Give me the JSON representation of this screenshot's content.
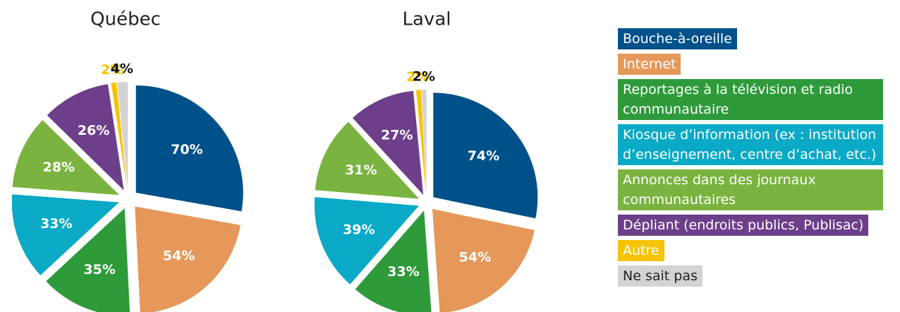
{
  "chart_data": [
    {
      "type": "pie",
      "title": "Québec",
      "categories": [
        "Bouche-à-oreille",
        "Internet",
        "Reportages à la télévision et radio communautaire",
        "Kiosque d’information (ex : institution d’enseignement, centre d’achat, etc.)",
        "Annonces dans des journaux communautaires",
        "Dépliant (endroits publics, Publisac)",
        "Autre",
        "Ne sait pas"
      ],
      "values": [
        70,
        54,
        35,
        33,
        28,
        26,
        2,
        4
      ],
      "value_labels": [
        "70%",
        "54%",
        "35%",
        "33%",
        "28%",
        "26%",
        "2%",
        "4%"
      ],
      "colors": [
        "#00508a",
        "#e5985a",
        "#2e9a3a",
        "#0aa9c6",
        "#7ab340",
        "#6d3f8a",
        "#f5c400",
        "#d3d3d3"
      ]
    },
    {
      "type": "pie",
      "title": "Laval",
      "categories": [
        "Bouche-à-oreille",
        "Internet",
        "Reportages à la télévision et radio communautaire",
        "Kiosque d’information (ex : institution d’enseignement, centre d’achat, etc.)",
        "Annonces dans des journaux communautaires",
        "Dépliant (endroits publics, Publisac)",
        "Autre",
        "Ne sait pas"
      ],
      "values": [
        74,
        54,
        33,
        39,
        31,
        27,
        2,
        2
      ],
      "value_labels": [
        "74%",
        "54%",
        "33%",
        "39%",
        "31%",
        "27%",
        "2%",
        "2%"
      ],
      "colors": [
        "#00508a",
        "#e5985a",
        "#2e9a3a",
        "#0aa9c6",
        "#7ab340",
        "#6d3f8a",
        "#f5c400",
        "#d3d3d3"
      ]
    }
  ]
}
